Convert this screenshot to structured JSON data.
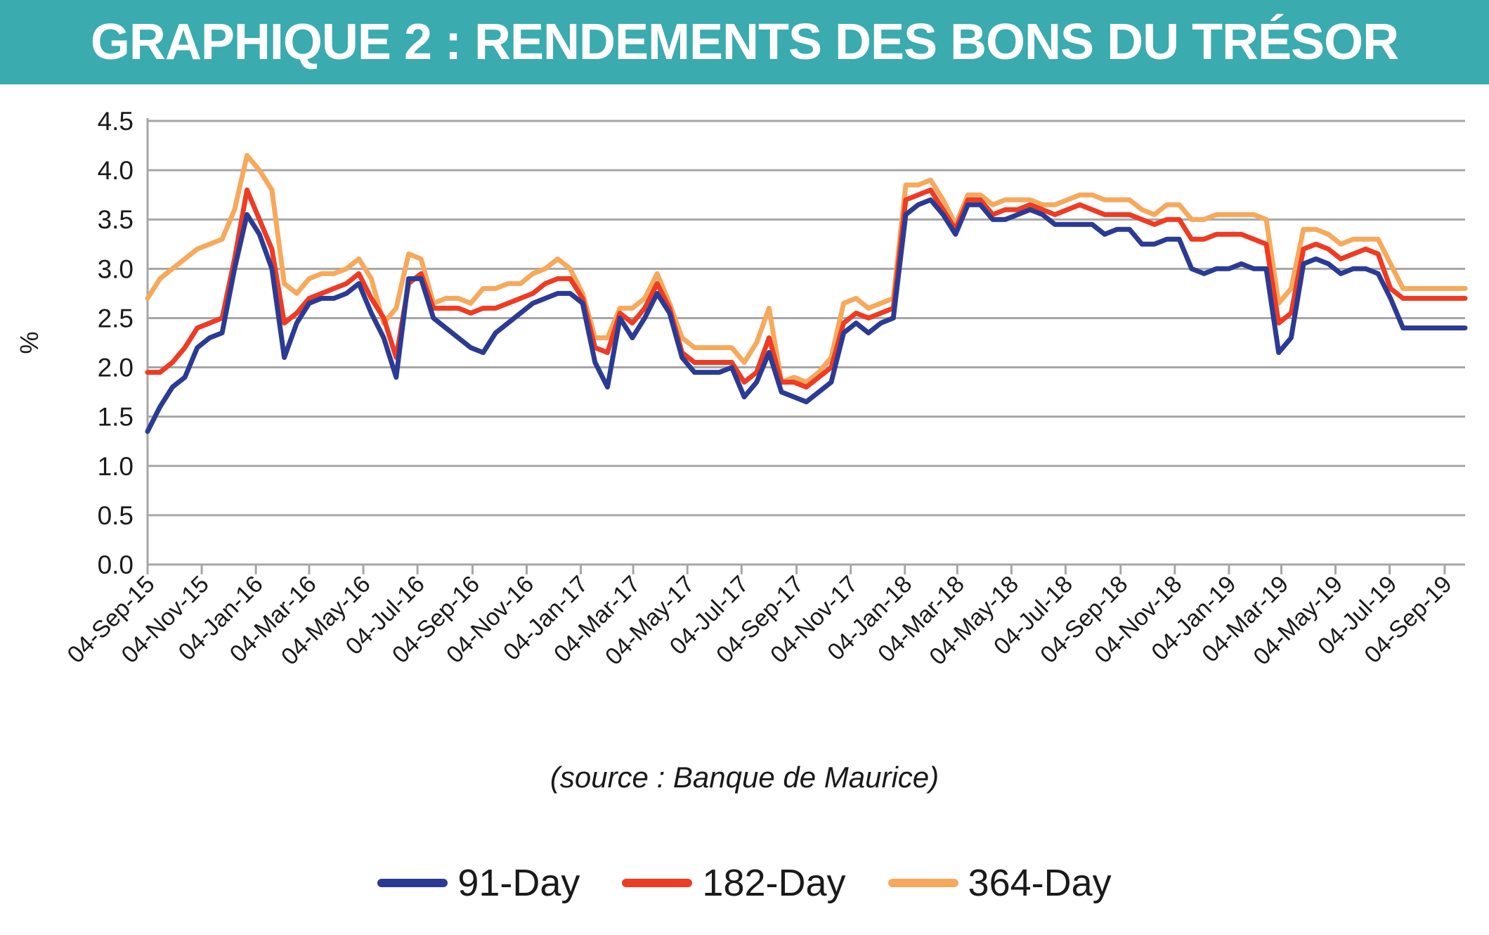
{
  "header": {
    "title": "GRAPHIQUE 2 : RENDEMENTS DES BONS DU TRÉSOR"
  },
  "source_note": "(source : Banque de Maurice)",
  "colors": {
    "banner": "#3aabaf",
    "series_91": "#2b3b94",
    "series_182": "#ee3b24",
    "series_364": "#f6a95c",
    "grid": "#a6a6a6"
  },
  "chart_data": {
    "type": "line",
    "title": "GRAPHIQUE 2 : RENDEMENTS DES BONS DU TRÉSOR",
    "xlabel": "",
    "ylabel": "%",
    "ylim": [
      0,
      4.5
    ],
    "yticks": [
      "0.0",
      "0.5",
      "1.0",
      "1.5",
      "2.0",
      "2.5",
      "3.0",
      "3.5",
      "4.0",
      "4.5"
    ],
    "grid": true,
    "legend_position": "bottom",
    "x": [
      "2015-09-04",
      "2015-09-18",
      "2015-10-02",
      "2015-10-16",
      "2015-10-30",
      "2015-11-13",
      "2015-11-27",
      "2015-12-11",
      "2015-12-25",
      "2016-01-08",
      "2016-01-22",
      "2016-02-05",
      "2016-02-19",
      "2016-03-04",
      "2016-03-18",
      "2016-04-01",
      "2016-04-15",
      "2016-04-29",
      "2016-05-13",
      "2016-05-27",
      "2016-06-10",
      "2016-06-24",
      "2016-07-08",
      "2016-07-22",
      "2016-08-05",
      "2016-08-19",
      "2016-09-02",
      "2016-09-16",
      "2016-09-30",
      "2016-10-14",
      "2016-10-28",
      "2016-11-11",
      "2016-11-25",
      "2016-12-09",
      "2016-12-23",
      "2017-01-06",
      "2017-01-20",
      "2017-02-03",
      "2017-02-17",
      "2017-03-03",
      "2017-03-17",
      "2017-03-31",
      "2017-04-14",
      "2017-04-28",
      "2017-05-12",
      "2017-05-26",
      "2017-06-09",
      "2017-06-23",
      "2017-07-07",
      "2017-07-21",
      "2017-08-04",
      "2017-08-18",
      "2017-09-01",
      "2017-09-15",
      "2017-09-29",
      "2017-10-13",
      "2017-10-27",
      "2017-11-10",
      "2017-11-24",
      "2017-12-08",
      "2017-12-22",
      "2018-01-05",
      "2018-01-19",
      "2018-02-02",
      "2018-02-16",
      "2018-03-02",
      "2018-03-16",
      "2018-03-30",
      "2018-04-13",
      "2018-04-27",
      "2018-05-11",
      "2018-05-25",
      "2018-06-08",
      "2018-06-22",
      "2018-07-06",
      "2018-07-20",
      "2018-08-03",
      "2018-08-17",
      "2018-08-31",
      "2018-09-14",
      "2018-09-28",
      "2018-10-12",
      "2018-10-26",
      "2018-11-09",
      "2018-11-23",
      "2018-12-07",
      "2018-12-21",
      "2019-01-04",
      "2019-01-18",
      "2019-02-01",
      "2019-02-15",
      "2019-03-01",
      "2019-03-15",
      "2019-03-29",
      "2019-04-12",
      "2019-04-26",
      "2019-05-10",
      "2019-05-24",
      "2019-06-07",
      "2019-06-21",
      "2019-07-05",
      "2019-07-19",
      "2019-08-02",
      "2019-08-16",
      "2019-08-30",
      "2019-09-13",
      "2019-09-27"
    ],
    "xticks": [
      "04-Sep-15",
      "04-Nov-15",
      "04-Jan-16",
      "04-Mar-16",
      "04-May-16",
      "04-Jul-16",
      "04-Sep-16",
      "04-Nov-16",
      "04-Jan-17",
      "04-Mar-17",
      "04-May-17",
      "04-Jul-17",
      "04-Sep-17",
      "04-Nov-17",
      "04-Jan-18",
      "04-Mar-18",
      "04-May-18",
      "04-Jul-18",
      "04-Sep-18",
      "04-Nov-18",
      "04-Jan-19",
      "04-Mar-19",
      "04-May-19",
      "04-Jul-19",
      "04-Sep-19"
    ],
    "xtick_dates": [
      "2015-09-04",
      "2015-11-04",
      "2016-01-04",
      "2016-03-04",
      "2016-05-04",
      "2016-07-04",
      "2016-09-04",
      "2016-11-04",
      "2017-01-04",
      "2017-03-04",
      "2017-05-04",
      "2017-07-04",
      "2017-09-04",
      "2017-11-04",
      "2018-01-04",
      "2018-03-04",
      "2018-05-04",
      "2018-07-04",
      "2018-09-04",
      "2018-11-04",
      "2019-01-04",
      "2019-03-04",
      "2019-05-04",
      "2019-07-04",
      "2019-09-04"
    ],
    "series": [
      {
        "name": "91-Day",
        "values": [
          1.35,
          1.6,
          1.8,
          1.9,
          2.2,
          2.3,
          2.35,
          3.0,
          3.55,
          3.35,
          3.0,
          2.1,
          2.45,
          2.65,
          2.7,
          2.7,
          2.75,
          2.85,
          2.55,
          2.3,
          1.9,
          2.9,
          2.9,
          2.5,
          2.4,
          2.3,
          2.2,
          2.15,
          2.35,
          2.45,
          2.55,
          2.65,
          2.7,
          2.75,
          2.75,
          2.65,
          2.05,
          1.8,
          2.5,
          2.3,
          2.5,
          2.75,
          2.55,
          2.1,
          1.95,
          1.95,
          1.95,
          2.0,
          1.7,
          1.85,
          2.15,
          1.75,
          1.7,
          1.65,
          1.75,
          1.85,
          2.35,
          2.45,
          2.35,
          2.45,
          2.5,
          3.55,
          3.65,
          3.7,
          3.55,
          3.35,
          3.65,
          3.65,
          3.5,
          3.5,
          3.55,
          3.6,
          3.55,
          3.45,
          3.45,
          3.45,
          3.45,
          3.35,
          3.4,
          3.4,
          3.25,
          3.25,
          3.3,
          3.3,
          3.0,
          2.95,
          3.0,
          3.0,
          3.05,
          3.0,
          3.0,
          2.15,
          2.3,
          3.05,
          3.1,
          3.05,
          2.95,
          3.0,
          3.0,
          2.95,
          2.7,
          2.4,
          2.4,
          2.4,
          2.4,
          2.4,
          2.4
        ]
      },
      {
        "name": "182-Day",
        "values": [
          1.95,
          1.95,
          2.05,
          2.2,
          2.4,
          2.45,
          2.5,
          3.1,
          3.8,
          3.5,
          3.2,
          2.45,
          2.55,
          2.7,
          2.75,
          2.8,
          2.85,
          2.95,
          2.7,
          2.5,
          2.1,
          2.85,
          2.95,
          2.6,
          2.6,
          2.6,
          2.55,
          2.6,
          2.6,
          2.65,
          2.7,
          2.75,
          2.85,
          2.9,
          2.9,
          2.7,
          2.2,
          2.15,
          2.55,
          2.45,
          2.6,
          2.85,
          2.6,
          2.15,
          2.05,
          2.05,
          2.05,
          2.05,
          1.85,
          1.95,
          2.3,
          1.85,
          1.85,
          1.8,
          1.9,
          2.0,
          2.45,
          2.55,
          2.5,
          2.55,
          2.6,
          3.7,
          3.75,
          3.8,
          3.6,
          3.4,
          3.7,
          3.7,
          3.55,
          3.6,
          3.6,
          3.65,
          3.6,
          3.55,
          3.6,
          3.65,
          3.6,
          3.55,
          3.55,
          3.55,
          3.5,
          3.45,
          3.5,
          3.5,
          3.3,
          3.3,
          3.35,
          3.35,
          3.35,
          3.3,
          3.25,
          2.45,
          2.55,
          3.2,
          3.25,
          3.2,
          3.1,
          3.15,
          3.2,
          3.15,
          2.8,
          2.7,
          2.7,
          2.7,
          2.7,
          2.7,
          2.7
        ]
      },
      {
        "name": "364-Day",
        "values": [
          2.7,
          2.9,
          3.0,
          3.1,
          3.2,
          3.25,
          3.3,
          3.6,
          4.15,
          4.0,
          3.8,
          2.85,
          2.75,
          2.9,
          2.95,
          2.95,
          3.0,
          3.1,
          2.9,
          2.45,
          2.6,
          3.15,
          3.1,
          2.65,
          2.7,
          2.7,
          2.65,
          2.8,
          2.8,
          2.85,
          2.85,
          2.95,
          3.0,
          3.1,
          3.0,
          2.75,
          2.3,
          2.3,
          2.6,
          2.6,
          2.7,
          2.95,
          2.65,
          2.3,
          2.2,
          2.2,
          2.2,
          2.2,
          2.05,
          2.25,
          2.6,
          1.85,
          1.9,
          1.85,
          1.95,
          2.1,
          2.65,
          2.7,
          2.6,
          2.65,
          2.7,
          3.85,
          3.85,
          3.9,
          3.7,
          3.45,
          3.75,
          3.75,
          3.65,
          3.7,
          3.7,
          3.7,
          3.65,
          3.65,
          3.7,
          3.75,
          3.75,
          3.7,
          3.7,
          3.7,
          3.6,
          3.55,
          3.65,
          3.65,
          3.5,
          3.5,
          3.55,
          3.55,
          3.55,
          3.55,
          3.5,
          2.65,
          2.8,
          3.4,
          3.4,
          3.35,
          3.25,
          3.3,
          3.3,
          3.3,
          3.05,
          2.8,
          2.8,
          2.8,
          2.8,
          2.8,
          2.8
        ]
      }
    ]
  }
}
